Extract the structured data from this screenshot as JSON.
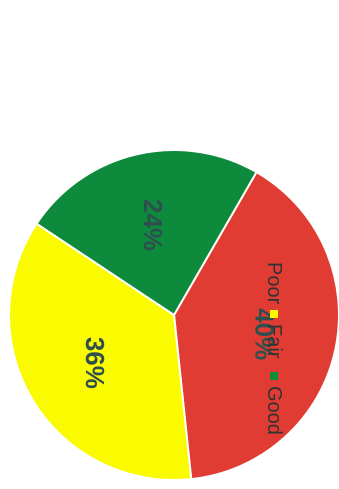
{
  "chart_data": {
    "type": "pie",
    "title": "",
    "legend_position": "top-right",
    "orientation": "rotated-90-clockwise",
    "slices": [
      {
        "label": "Poor",
        "value": 40,
        "display": "40%",
        "color": "#e03c33"
      },
      {
        "label": "Fair",
        "value": 36,
        "display": "36%",
        "color": "#fafa00"
      },
      {
        "label": "Good",
        "value": 24,
        "display": "24%",
        "color": "#0e8a3c"
      }
    ]
  },
  "colors": {
    "poor": "#e03c33",
    "fair": "#fafa00",
    "good": "#0e8a3c",
    "label_text": "#2f4f4f"
  }
}
